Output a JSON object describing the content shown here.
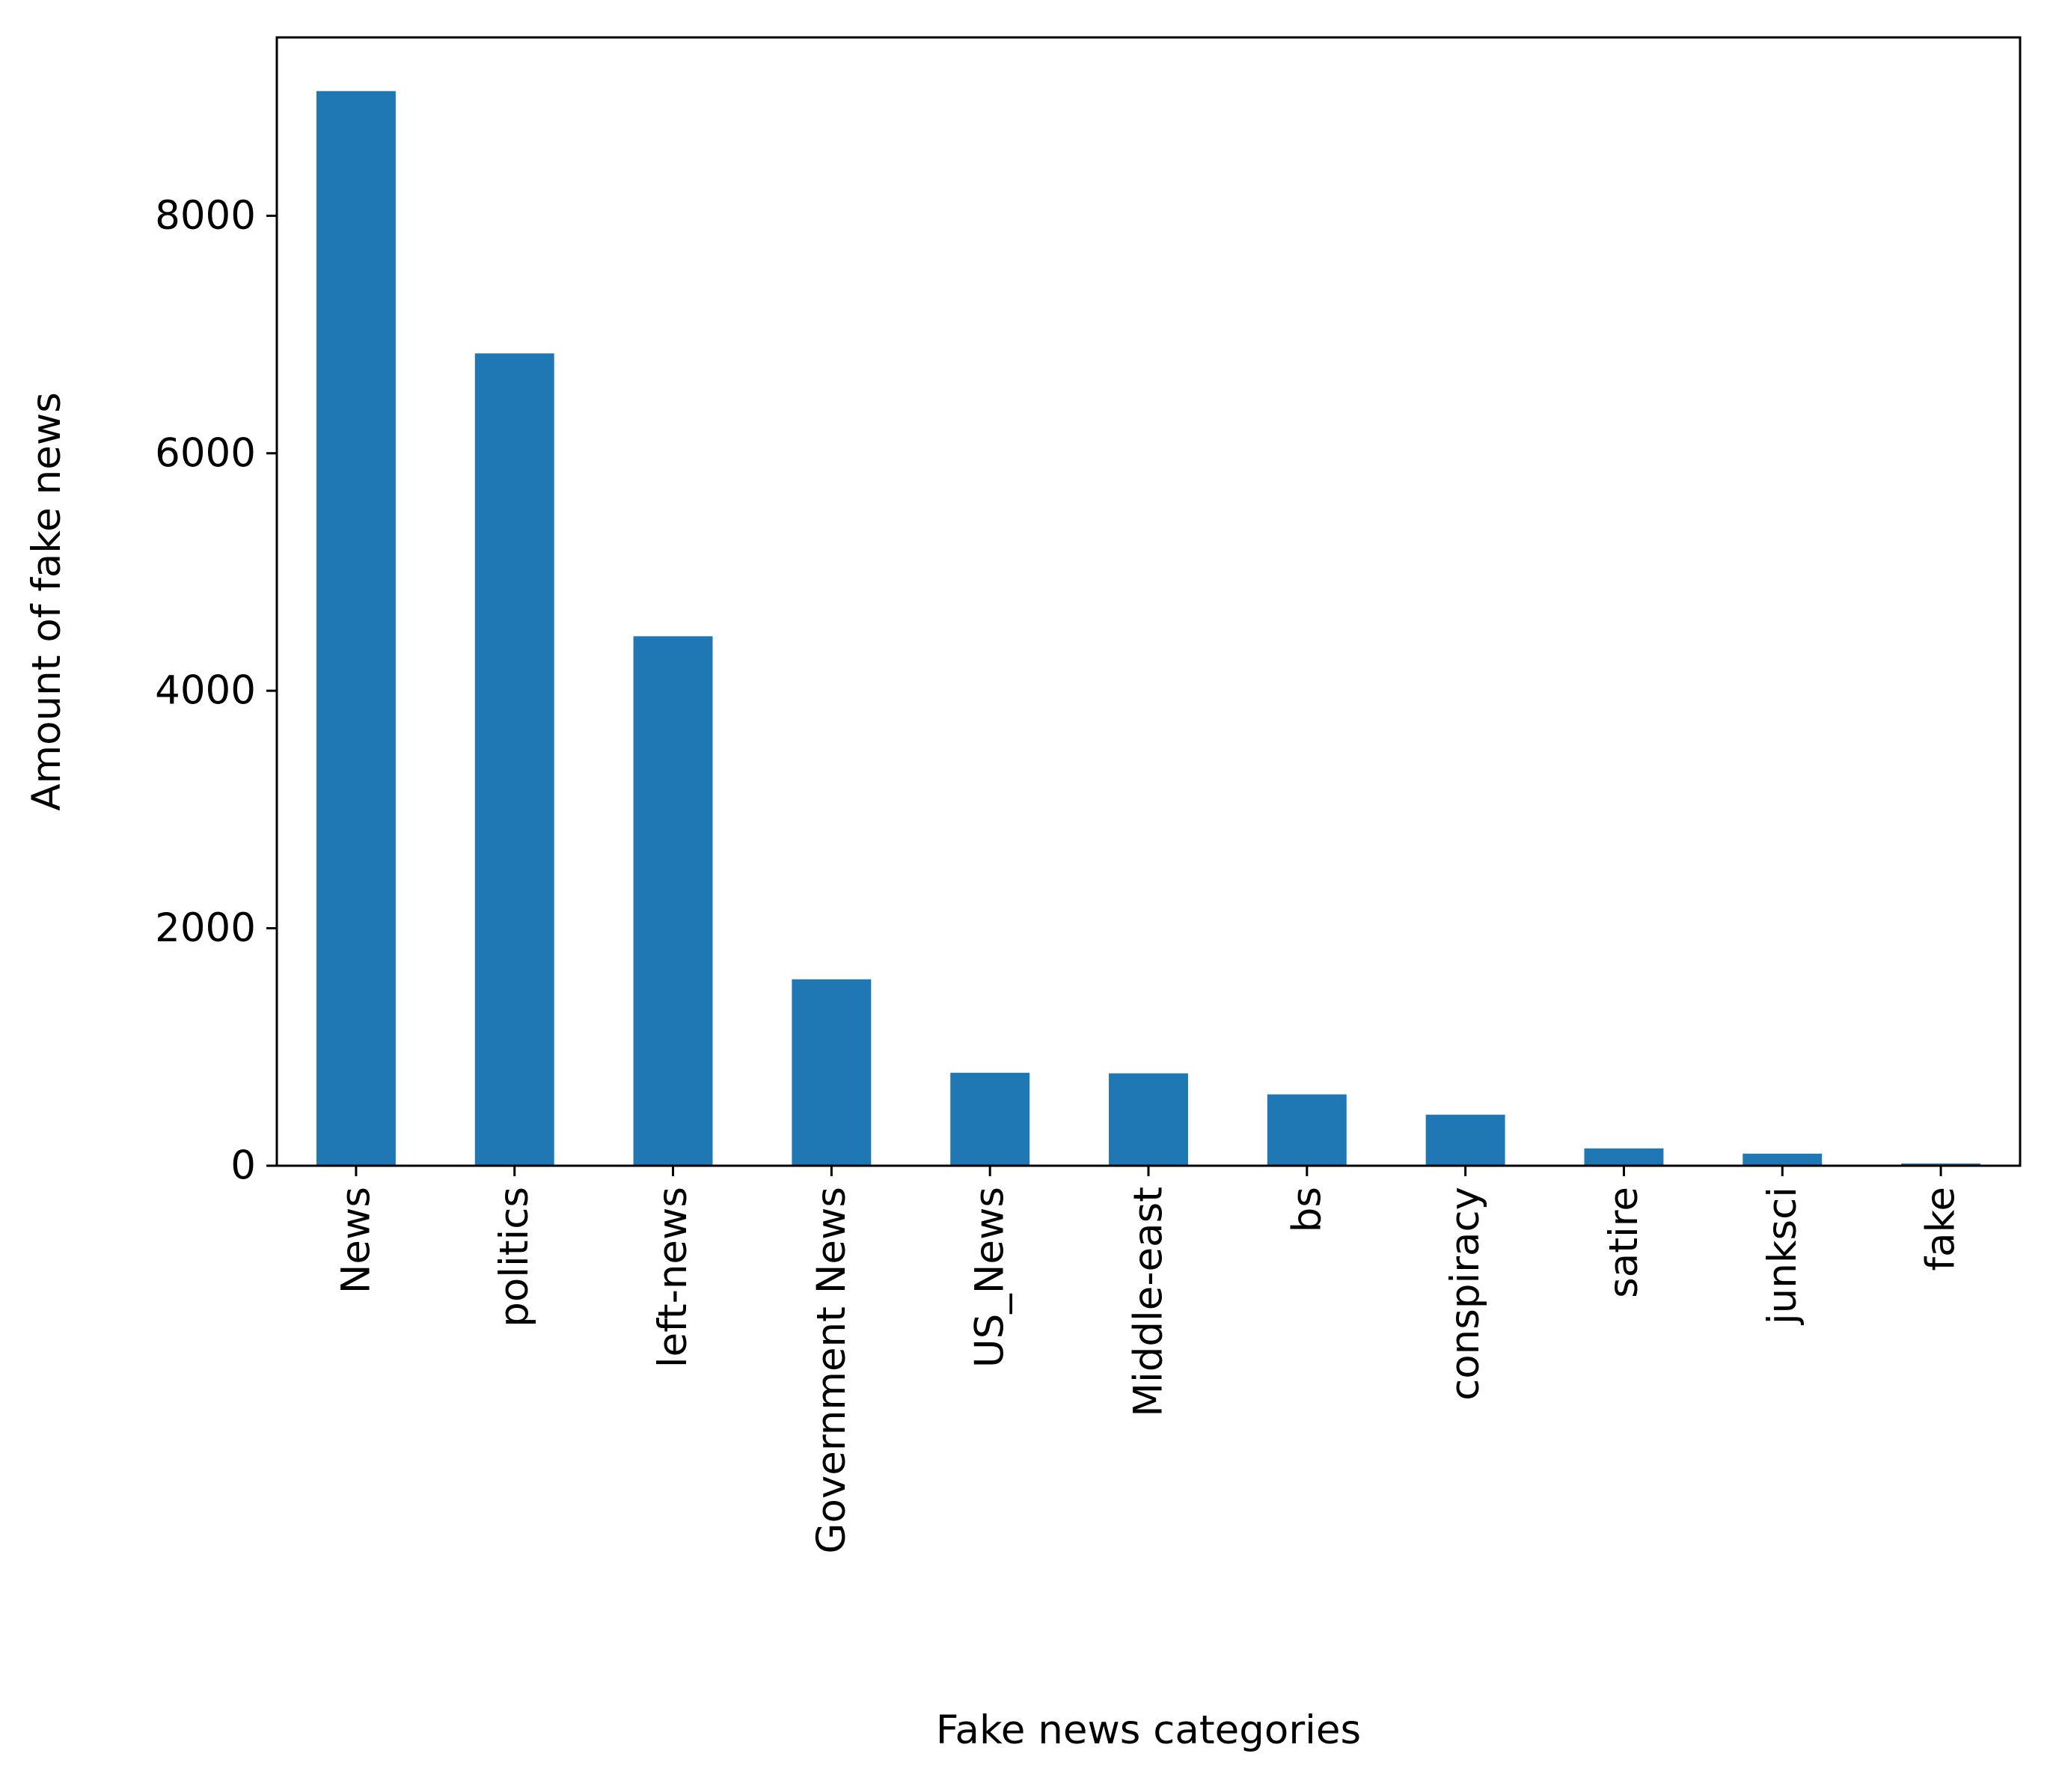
{
  "chart_data": {
    "type": "bar",
    "title": "",
    "xlabel": "Fake news categories",
    "ylabel": "Amount of fake news",
    "categories": [
      "News",
      "politics",
      "left-news",
      "Government News",
      "US_News",
      "Middle-east",
      "bs",
      "conspiracy",
      "satire",
      "junksci",
      "fake"
    ],
    "values": [
      9050,
      6841,
      4459,
      1570,
      783,
      778,
      601,
      430,
      146,
      102,
      19
    ],
    "ylim": [
      0,
      9502
    ],
    "yticks": [
      0,
      2000,
      4000,
      6000,
      8000
    ],
    "ytick_labels": [
      "0",
      "2000",
      "4000",
      "6000",
      "8000"
    ],
    "grid": false,
    "legend": "none",
    "bar_color": "#1f77b4",
    "axis_color": "#000000"
  }
}
